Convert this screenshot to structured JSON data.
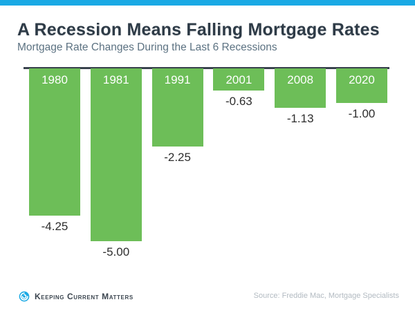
{
  "header": {
    "title": "A Recession Means Falling Mortgage Rates",
    "subtitle": "Mortgage Rate Changes During the Last 6 Recessions"
  },
  "chart_data": {
    "type": "bar",
    "title": "A Recession Means Falling Mortgage Rates",
    "subtitle": "Mortgage Rate Changes During the Last 6 Recessions",
    "categories": [
      "1980",
      "1981",
      "1991",
      "2001",
      "2008",
      "2020"
    ],
    "values": [
      -4.25,
      -5.0,
      -2.25,
      -0.63,
      -1.13,
      -1.0
    ],
    "value_labels": [
      "-4.25",
      "-5.00",
      "-2.25",
      "-0.63",
      "-1.13",
      "-1.00"
    ],
    "baseline": 0,
    "ylim": [
      -5.5,
      0
    ],
    "xlabel": "",
    "ylabel": "",
    "grid": false,
    "legend": false,
    "bar_color": "#6dbe58",
    "orientation": "columns-hanging-below-baseline",
    "category_label_position": "inside-top-white",
    "value_label_position": "below-bar"
  },
  "colors": {
    "accent_cyan": "#1aa9e4",
    "bar_green": "#6dbe58",
    "title_text": "#2e3b47",
    "subtitle_text": "#5c7282",
    "axis_line": "#39424d",
    "value_text": "#2d2d2d",
    "source_text": "#b2bac1",
    "logo_text": "#3c4650"
  },
  "footer": {
    "logo_text": "Keeping Current Matters",
    "source": "Source: Freddie Mac, Mortgage Specialists"
  }
}
